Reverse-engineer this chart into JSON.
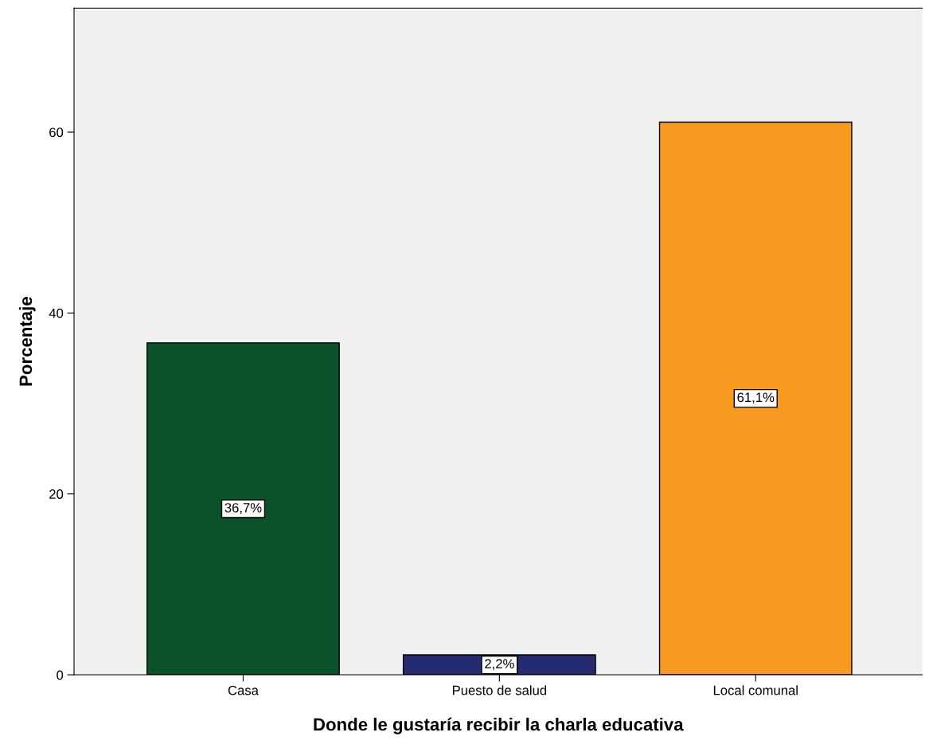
{
  "chart_data": {
    "type": "bar",
    "xlabel": "Donde le gustaría recibir la charla educativa",
    "ylabel": "Porcentaje",
    "categories": [
      "Casa",
      "Puesto de salud",
      "Local comunal"
    ],
    "values": [
      36.7,
      2.2,
      61.1
    ],
    "colors": [
      "#0b5129",
      "#262a6e",
      "#f89a1f"
    ],
    "value_labels": [
      "36,7%",
      "2,2%",
      "61,1%"
    ],
    "ylim": [
      0,
      73.7
    ],
    "yticks": [
      0,
      20,
      40,
      60
    ],
    "grid": false,
    "legend": false
  }
}
